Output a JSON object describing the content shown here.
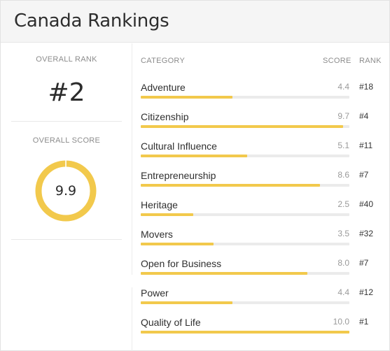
{
  "header": {
    "title": "Canada Rankings"
  },
  "overall": {
    "rank_label": "OVERALL RANK",
    "rank_value": "#2",
    "score_label": "OVERALL SCORE",
    "score_value": "9.9",
    "score_fraction": 0.99
  },
  "columns": {
    "category": "CATEGORY",
    "score": "SCORE",
    "rank": "RANK"
  },
  "categories": [
    {
      "name": "Adventure",
      "score": "4.4",
      "rank": "#18",
      "fraction": 0.44
    },
    {
      "name": "Citizenship",
      "score": "9.7",
      "rank": "#4",
      "fraction": 0.97
    },
    {
      "name": "Cultural Influence",
      "score": "5.1",
      "rank": "#11",
      "fraction": 0.51
    },
    {
      "name": "Entrepreneurship",
      "score": "8.6",
      "rank": "#7",
      "fraction": 0.86
    },
    {
      "name": "Heritage",
      "score": "2.5",
      "rank": "#40",
      "fraction": 0.25
    },
    {
      "name": "Movers",
      "score": "3.5",
      "rank": "#32",
      "fraction": 0.35
    },
    {
      "name": "Open for Business",
      "score": "8.0",
      "rank": "#7",
      "fraction": 0.8
    },
    {
      "name": "Power",
      "score": "4.4",
      "rank": "#12",
      "fraction": 0.44
    },
    {
      "name": "Quality of Life",
      "score": "10.0",
      "rank": "#1",
      "fraction": 1.0
    }
  ],
  "colors": {
    "accent": "#f2c94c",
    "track": "#ebebeb"
  }
}
